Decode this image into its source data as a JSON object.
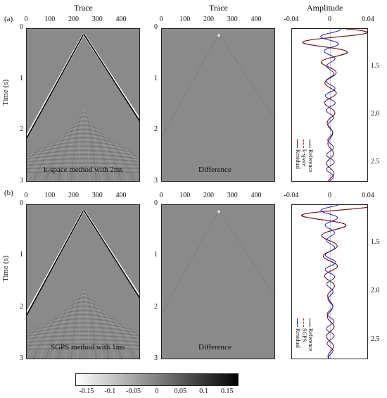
{
  "figure": {
    "col_headers": {
      "trace1": "Trace",
      "trace2": "Trace",
      "amplitude": "Amplitude"
    },
    "ylabel": "Time (s)",
    "rows": [
      {
        "label": "(a)",
        "left_caption": "k-space method with 2ms",
        "mid_caption": "Difference",
        "legend": {
          "reference": "Reference",
          "method": "k-space",
          "residual": "Residual"
        }
      },
      {
        "label": "(b)",
        "left_caption": "SGPS method with 1ms",
        "mid_caption": "Difference",
        "legend": {
          "reference": "Reference",
          "method": "SGPS",
          "residual": "Residual"
        }
      }
    ],
    "trace_ticks": [
      "0",
      "100",
      "200",
      "300",
      "400"
    ],
    "time_ticks": [
      "0",
      "1",
      "2",
      "3"
    ],
    "amp_ticks": [
      "-0.04",
      "0",
      "0.04"
    ],
    "amp_time_ticks": [
      "1.5",
      "2.0",
      "2.5"
    ],
    "colorbar_ticks": [
      "-0.15",
      "-0.1",
      "-0.05",
      "0",
      "0.05",
      "0.1",
      "0.15"
    ]
  },
  "chart_data": [
    {
      "type": "heatmap",
      "title": "k-space method with 2ms",
      "xlabel": "Trace",
      "ylabel": "Time (s)",
      "xlim": [
        0,
        480
      ],
      "ylim": [
        3,
        0
      ],
      "apex": {
        "trace": 240,
        "time": 0.1
      },
      "colormap": "gray",
      "clim": [
        -0.15,
        0.15
      ]
    },
    {
      "type": "heatmap",
      "title": "Difference",
      "xlabel": "Trace",
      "xlim": [
        0,
        480
      ],
      "ylim": [
        3,
        0
      ],
      "colormap": "gray",
      "clim": [
        -0.15,
        0.15
      ]
    },
    {
      "type": "line",
      "xlabel": "Amplitude",
      "xlim": [
        -0.04,
        0.04
      ],
      "ylim": [
        2.7,
        1.1
      ],
      "series": [
        {
          "name": "Reference",
          "color": "#000000",
          "style": "solid"
        },
        {
          "name": "k-space",
          "color": "#dd2222",
          "style": "dashed"
        },
        {
          "name": "Residual",
          "color": "#2222cc",
          "style": "solid"
        }
      ]
    },
    {
      "type": "heatmap",
      "title": "SGPS method with 1ms",
      "xlabel": "Trace",
      "ylabel": "Time (s)",
      "xlim": [
        0,
        480
      ],
      "ylim": [
        3,
        0
      ],
      "apex": {
        "trace": 240,
        "time": 0.1
      },
      "colormap": "gray",
      "clim": [
        -0.15,
        0.15
      ]
    },
    {
      "type": "heatmap",
      "title": "Difference",
      "xlabel": "Trace",
      "xlim": [
        0,
        480
      ],
      "ylim": [
        3,
        0
      ],
      "colormap": "gray",
      "clim": [
        -0.15,
        0.15
      ]
    },
    {
      "type": "line",
      "xlabel": "Amplitude",
      "xlim": [
        -0.04,
        0.04
      ],
      "ylim": [
        2.7,
        1.1
      ],
      "series": [
        {
          "name": "Reference",
          "color": "#000000",
          "style": "solid"
        },
        {
          "name": "SGPS",
          "color": "#dd2222",
          "style": "dashed"
        },
        {
          "name": "Residual",
          "color": "#2222cc",
          "style": "solid"
        }
      ]
    }
  ],
  "colors": {
    "panel_bg": "#8a8a8a",
    "reference": "#000000",
    "method": "#dd2222",
    "residual": "#2222cc"
  }
}
